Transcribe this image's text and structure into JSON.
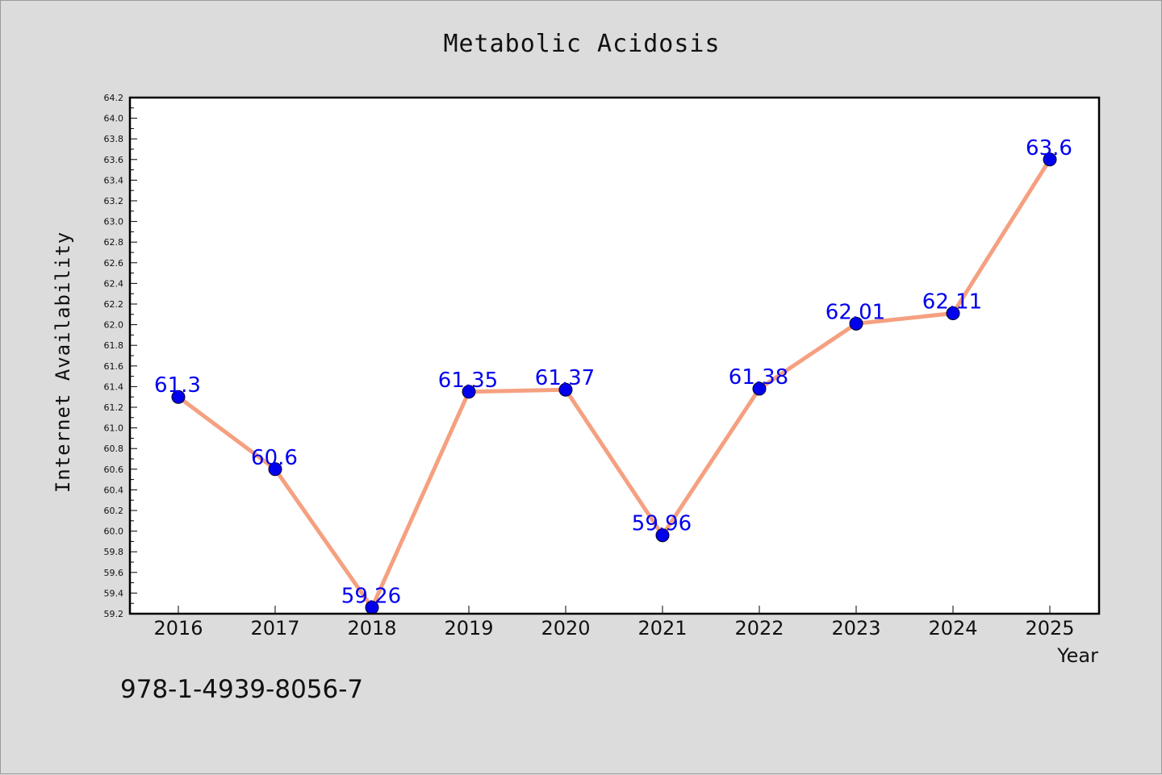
{
  "chart_data": {
    "type": "line",
    "title": "Metabolic Acidosis",
    "xlabel": "Year",
    "ylabel": "Internet Availability",
    "categories": [
      "2016",
      "2017",
      "2018",
      "2019",
      "2020",
      "2021",
      "2022",
      "2023",
      "2024",
      "2025"
    ],
    "series": [
      {
        "values": [
          61.3,
          60.6,
          59.26,
          61.35,
          61.37,
          59.96,
          61.38,
          62.01,
          62.11,
          63.6
        ],
        "labels": [
          "61.3",
          "60.6",
          "59.26",
          "61.35",
          "61.37",
          "59.96",
          "61.38",
          "62.01",
          "62.11",
          "63.6"
        ],
        "line_color": "#f5a080",
        "marker_color": "#0000ee"
      }
    ],
    "ylim": [
      59.2,
      64.2
    ],
    "yticks": [
      "59.2",
      "59.4",
      "59.6",
      "59.8",
      "60.0",
      "60.2",
      "60.4",
      "60.6",
      "60.8",
      "61.0",
      "61.2",
      "61.4",
      "61.6",
      "61.8",
      "62.0",
      "62.2",
      "62.4",
      "62.6",
      "62.8",
      "63.0",
      "63.2",
      "63.4",
      "63.6",
      "63.8",
      "64.0",
      "64.2"
    ],
    "grid": false,
    "annotation": "978-1-4939-8056-7"
  }
}
